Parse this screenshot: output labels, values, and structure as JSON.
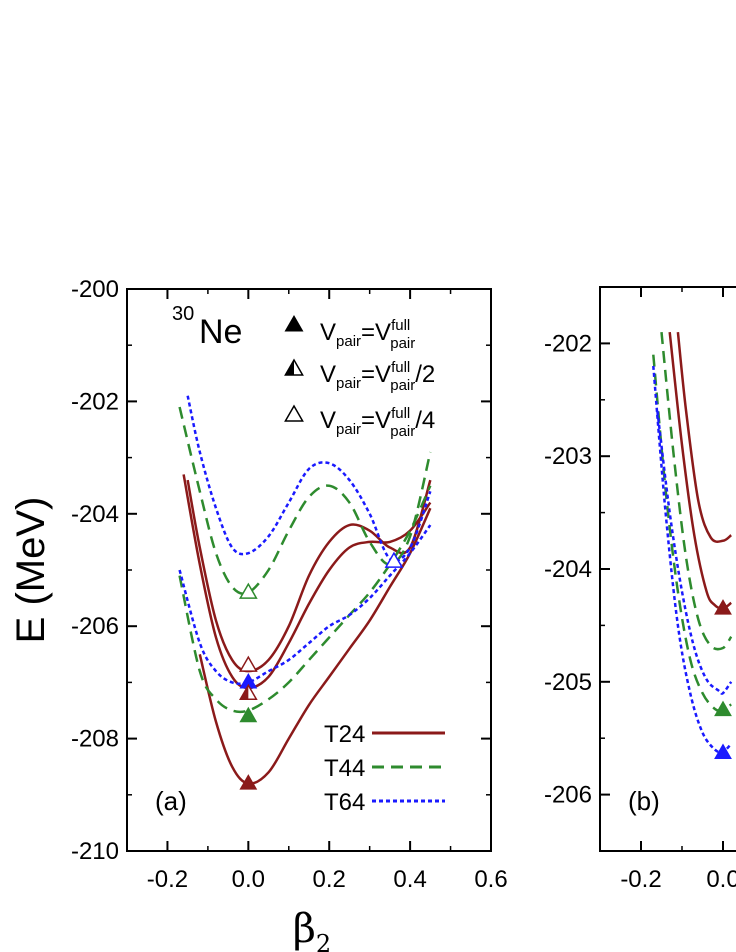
{
  "chart_data": [
    {
      "type": "line",
      "panel_label": "(a)",
      "nucleus": {
        "mass": "30",
        "symbol": "Ne"
      },
      "ylabel": "E (MeV)",
      "xlabel": "β2",
      "xlim": [
        -0.3,
        0.6
      ],
      "ylim": [
        -210,
        -200
      ],
      "xticks": [
        "-0.2",
        "0.0",
        "0.2",
        "0.4",
        "0.6"
      ],
      "yticks": [
        "-210",
        "-208",
        "-206",
        "-204",
        "-202",
        "-200"
      ],
      "legend_markers": [
        {
          "text": "Vpair=Vpairfull",
          "style": "filled"
        },
        {
          "text": "Vpair=Vpairfull/2",
          "style": "half"
        },
        {
          "text": "Vpair=Vpairfull/4",
          "style": "open"
        }
      ],
      "legend_lines": [
        {
          "name": "T24",
          "color": "#8b1a1a",
          "dash": "solid"
        },
        {
          "name": "T44",
          "color": "#2e8b2e",
          "dash": "dashed"
        },
        {
          "name": "T64",
          "color": "#1a1aff",
          "dash": "dotted"
        }
      ],
      "series": [
        {
          "name": "T24",
          "color": "#8b1a1a",
          "dash": "solid",
          "x": [
            -0.12,
            -0.08,
            -0.04,
            0.0,
            0.05,
            0.1,
            0.15,
            0.2,
            0.25,
            0.3,
            0.35,
            0.4,
            0.45
          ],
          "y": [
            -206.5,
            -207.7,
            -208.5,
            -208.8,
            -208.6,
            -208.0,
            -207.4,
            -206.9,
            -206.4,
            -205.9,
            -205.3,
            -204.7,
            -203.9
          ]
        },
        {
          "name": "T24",
          "color": "#8b1a1a",
          "dash": "solid",
          "x": [
            -0.16,
            -0.12,
            -0.08,
            -0.04,
            0.0,
            0.05,
            0.1,
            0.15,
            0.2,
            0.25,
            0.3,
            0.35,
            0.4,
            0.45
          ],
          "y": [
            -203.3,
            -204.9,
            -206.2,
            -206.9,
            -207.1,
            -206.9,
            -206.3,
            -205.6,
            -205.0,
            -204.6,
            -204.5,
            -204.5,
            -204.3,
            -203.8
          ]
        },
        {
          "name": "T24",
          "color": "#8b1a1a",
          "dash": "solid",
          "x": [
            -0.15,
            -0.12,
            -0.08,
            -0.04,
            0.0,
            0.05,
            0.1,
            0.15,
            0.2,
            0.25,
            0.3,
            0.35,
            0.4,
            0.45
          ],
          "y": [
            -203.4,
            -204.6,
            -205.9,
            -206.6,
            -206.8,
            -206.6,
            -206.0,
            -205.1,
            -204.5,
            -204.2,
            -204.3,
            -204.6,
            -204.6,
            -203.4
          ]
        },
        {
          "name": "T44",
          "color": "#2e8b2e",
          "dash": "dashed",
          "x": [
            -0.17,
            -0.12,
            -0.08,
            -0.04,
            0.0,
            0.05,
            0.1,
            0.15,
            0.2,
            0.25,
            0.3,
            0.35,
            0.4,
            0.45
          ],
          "y": [
            -205.1,
            -206.8,
            -207.3,
            -207.5,
            -207.5,
            -207.3,
            -207.0,
            -206.6,
            -206.2,
            -205.8,
            -205.4,
            -204.9,
            -204.3,
            -203.5
          ]
        },
        {
          "name": "T44",
          "color": "#2e8b2e",
          "dash": "dashed",
          "x": [
            -0.17,
            -0.12,
            -0.08,
            -0.04,
            0.0,
            0.05,
            0.1,
            0.15,
            0.2,
            0.25,
            0.3,
            0.35,
            0.4,
            0.45
          ],
          "y": [
            -202.1,
            -203.6,
            -204.7,
            -205.3,
            -205.4,
            -205.0,
            -204.3,
            -203.7,
            -203.5,
            -203.8,
            -204.5,
            -204.9,
            -204.4,
            -202.9
          ]
        },
        {
          "name": "T64",
          "color": "#1a1aff",
          "dash": "dotted",
          "x": [
            -0.17,
            -0.12,
            -0.08,
            -0.04,
            0.0,
            0.05,
            0.1,
            0.15,
            0.2,
            0.25,
            0.3,
            0.35,
            0.4,
            0.45
          ],
          "y": [
            -205.0,
            -206.3,
            -206.8,
            -207.0,
            -207.0,
            -206.8,
            -206.6,
            -206.3,
            -206.0,
            -205.8,
            -205.5,
            -205.1,
            -204.7,
            -204.2
          ]
        },
        {
          "name": "T64",
          "color": "#1a1aff",
          "dash": "dotted",
          "x": [
            -0.15,
            -0.12,
            -0.08,
            -0.04,
            0.0,
            0.05,
            0.1,
            0.15,
            0.2,
            0.25,
            0.3,
            0.35,
            0.4,
            0.45
          ],
          "y": [
            -201.9,
            -202.9,
            -203.9,
            -204.6,
            -204.7,
            -204.4,
            -203.8,
            -203.2,
            -203.1,
            -203.4,
            -204.0,
            -204.8,
            -204.6,
            -203.6
          ]
        }
      ],
      "markers": [
        {
          "x": 0.0,
          "y": -208.8,
          "style": "filled",
          "color": "#8b1a1a"
        },
        {
          "x": 0.0,
          "y": -207.6,
          "style": "filled",
          "color": "#2e8b2e"
        },
        {
          "x": 0.0,
          "y": -207.0,
          "style": "filled",
          "color": "#1a1aff"
        },
        {
          "x": 0.0,
          "y": -207.2,
          "style": "half",
          "color": "#8b1a1a"
        },
        {
          "x": 0.0,
          "y": -206.7,
          "style": "open",
          "color": "#8b1a1a"
        },
        {
          "x": 0.0,
          "y": -205.4,
          "style": "open",
          "color": "#2e8b2e"
        },
        {
          "x": 0.36,
          "y": -204.85,
          "style": "open",
          "color": "#1a1aff"
        }
      ]
    },
    {
      "type": "line",
      "panel_label": "(b)",
      "xlim": [
        -0.3,
        0.1
      ],
      "ylim": [
        -206.5,
        -201.5
      ],
      "xticks": [
        "-0.2",
        "0.0"
      ],
      "yticks": [
        "-206",
        "-205",
        "-204",
        "-203",
        "-202"
      ],
      "series": [
        {
          "name": "T24",
          "color": "#8b1a1a",
          "dash": "solid",
          "x": [
            -0.11,
            -0.09,
            -0.06,
            -0.03,
            0.0,
            0.02
          ],
          "y": [
            -201.9,
            -202.6,
            -203.4,
            -203.72,
            -203.75,
            -203.7
          ]
        },
        {
          "name": "T24",
          "color": "#8b1a1a",
          "dash": "solid",
          "x": [
            -0.13,
            -0.1,
            -0.07,
            -0.04,
            -0.02,
            0.0,
            0.02
          ],
          "y": [
            -201.9,
            -202.9,
            -203.7,
            -204.2,
            -204.32,
            -204.35,
            -204.3
          ]
        },
        {
          "name": "T44",
          "color": "#2e8b2e",
          "dash": "dashed",
          "x": [
            -0.15,
            -0.12,
            -0.09,
            -0.06,
            -0.03,
            0.0,
            0.02
          ],
          "y": [
            -201.9,
            -203.0,
            -203.9,
            -204.45,
            -204.68,
            -204.7,
            -204.6
          ]
        },
        {
          "name": "T44",
          "color": "#2e8b2e",
          "dash": "dashed",
          "x": [
            -0.17,
            -0.14,
            -0.11,
            -0.08,
            -0.05,
            -0.02,
            0.0,
            0.02
          ],
          "y": [
            -202.1,
            -203.3,
            -204.2,
            -204.8,
            -205.1,
            -205.24,
            -205.25,
            -205.2
          ]
        },
        {
          "name": "T64",
          "color": "#1a1aff",
          "dash": "dotted",
          "x": [
            -0.16,
            -0.13,
            -0.1,
            -0.07,
            -0.04,
            -0.01,
            0.0,
            0.02
          ],
          "y": [
            -202.6,
            -203.5,
            -204.2,
            -204.7,
            -204.98,
            -205.08,
            -205.1,
            -205.0
          ]
        },
        {
          "name": "T64",
          "color": "#1a1aff",
          "dash": "dotted",
          "x": [
            -0.17,
            -0.14,
            -0.11,
            -0.08,
            -0.05,
            -0.02,
            0.0,
            0.02
          ],
          "y": [
            -202.2,
            -203.5,
            -204.5,
            -205.1,
            -205.45,
            -205.6,
            -205.62,
            -205.55
          ]
        }
      ],
      "markers": [
        {
          "x": 0.0,
          "y": -204.35,
          "style": "filled",
          "color": "#8b1a1a"
        },
        {
          "x": 0.0,
          "y": -205.25,
          "style": "filled",
          "color": "#2e8b2e"
        },
        {
          "x": 0.0,
          "y": -205.63,
          "style": "filled",
          "color": "#1a1aff"
        }
      ]
    }
  ]
}
